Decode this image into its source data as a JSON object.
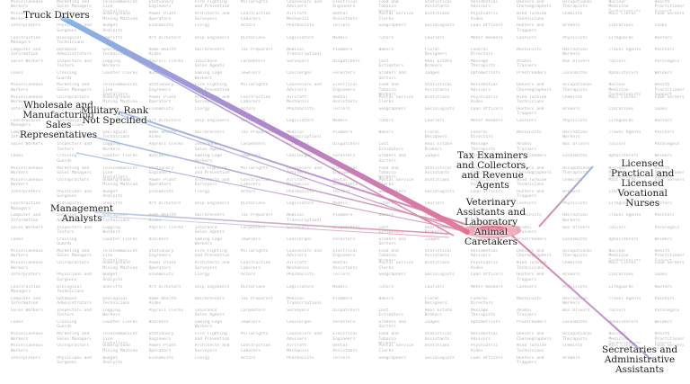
{
  "labels": {
    "truck_drivers": "Truck Drivers",
    "wholesale": "Wholesale and\nManufacturing\nSales\nRepresentatives",
    "military": "Military, Rank\nNot Specified",
    "management": "Management\nAnalysts",
    "tax_examiners": "Tax Examiners\nand Collectors,\nand Revenue\nAgents",
    "veterinary": "Veterinary\nAssistants and\nLaboratory\nAnimal\nCaretakers",
    "lpn": "Licensed\nPractical and\nLicensed\nVocational\nNurses",
    "secretaries": "Secretaries and\nAdministrative\nAssistants"
  },
  "background_occupations": [
    "Miscellaneous Workers",
    "Marketing and Sales Managers",
    "Telecommunications Line Installers",
    "Stationary Engineers",
    "Fire Fighting and Prevention",
    "Millwrights",
    "Counselors and Advisers",
    "Electrical Engineers",
    "Food and Tobacco Workers",
    "Statistical Assistants",
    "Residential Advisors",
    "Dancers and Choreographers",
    "Occupational Therapists",
    "Nuclear Medicine Technologists",
    "Health Practitioner Support",
    "Miscellaneous Workers",
    "Chiropractors",
    "Underground Mining Machine",
    "Power Plant Operators",
    "Architects and Surveyors",
    "Construction Laborers",
    "Aircraft Mechanics",
    "Dental Assistants",
    "Postal Service Clerks",
    "Dietitians",
    "Psychiatric Aides",
    "Wind Turbine Technicians",
    "Chemists",
    "Mail Clerks",
    "Food Servers",
    "Interpreters",
    "Physicians and Surgeons",
    "Budget Analysts",
    "Economists",
    "Clergy",
    "Actors",
    "Pharmacists",
    "Tellers",
    "Geographers",
    "Sociologists",
    "Loan Officers",
    "Hunters and Trappers",
    "Brokers",
    "Librarians",
    "Cooks",
    "Construction Managers",
    "Biological Technicians",
    "Sheriffs",
    "Art Directors",
    "Ship Engineers",
    "Historians",
    "Legislators",
    "Models",
    "Tutors",
    "Couriers",
    "Meter Readers",
    "Cashiers",
    "Physicists",
    "Lifeguards",
    "Roofers",
    "Computer and Information",
    "Database Administrators",
    "Geological Technicians",
    "Home Health Aides",
    "Hairdressers",
    "Tax Preparers",
    "Medical Transcriptionists",
    "Plumbers",
    "Bakers",
    "Floral Designers",
    "Funeral Directors",
    "Machinists",
    "Recreation Workers",
    "Travel Agents",
    "Painters",
    "Sales Workers",
    "Inspectors and Testers",
    "Logging Workers",
    "Payroll Clerks",
    "Insurance Sales Agents",
    "Carpenters",
    "Surveyors",
    "Dispatchers",
    "Cost Estimators",
    "Real Estate Brokers",
    "Massage Therapists",
    "Animal Trainers",
    "Bus Drivers",
    "Tailors",
    "Paralegals",
    "Cooks",
    "Crossing Guards",
    "Counter Clerks",
    "Butchers",
    "Gaming Cage Workers",
    "Jewelers",
    "Concierges",
    "Foresters",
    "Graders and Sorters",
    "Judges",
    "Optometrists",
    "Proofreaders",
    "Locksmiths",
    "Upholsterers",
    "Welders"
  ],
  "colors": {
    "blue": "#7fb3e6",
    "purple": "#b07bc8",
    "pink": "#e4718f",
    "hub": "#e56b86"
  }
}
